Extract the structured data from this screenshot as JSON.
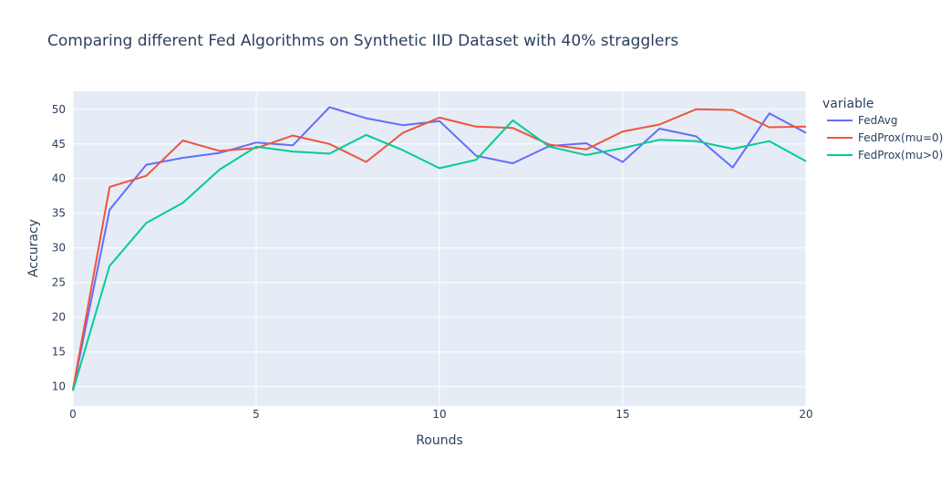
{
  "chart_data": {
    "type": "line",
    "title": "Comparing different Fed Algorithms on Synthetic IID Dataset with 40% stragglers",
    "xlabel": "Rounds",
    "ylabel": "Accuracy",
    "xlim": [
      0,
      20
    ],
    "ylim": [
      7.2,
      52.6
    ],
    "xticks": [
      0,
      5,
      10,
      15,
      20
    ],
    "yticks": [
      10,
      15,
      20,
      25,
      30,
      35,
      40,
      45,
      50
    ],
    "grid": true,
    "legend_title": "variable",
    "legend_position": "right",
    "x": [
      0,
      1,
      2,
      3,
      4,
      5,
      6,
      7,
      8,
      9,
      10,
      11,
      12,
      13,
      14,
      15,
      16,
      17,
      18,
      19,
      20
    ],
    "series": [
      {
        "name": "FedAvg",
        "color": "#636efa",
        "values": [
          9.5,
          35.5,
          42.0,
          43.0,
          43.7,
          45.2,
          44.8,
          50.3,
          48.7,
          47.7,
          48.3,
          43.3,
          42.2,
          44.7,
          45.1,
          42.4,
          47.2,
          46.1,
          41.6,
          49.4,
          46.6
        ]
      },
      {
        "name": "FedProx(mu=0)",
        "color": "#EF553B",
        "values": [
          9.6,
          38.8,
          40.4,
          45.5,
          44.0,
          44.4,
          46.2,
          45.0,
          42.4,
          46.6,
          48.8,
          47.5,
          47.3,
          44.9,
          44.2,
          46.8,
          47.8,
          50.0,
          49.9,
          47.4,
          47.5
        ]
      },
      {
        "name": "FedProx(mu>0)",
        "color": "#00cc96",
        "values": [
          9.4,
          27.4,
          33.6,
          36.5,
          41.3,
          44.6,
          43.9,
          43.6,
          46.3,
          44.1,
          41.5,
          42.7,
          48.4,
          44.6,
          43.4,
          44.4,
          45.6,
          45.4,
          44.3,
          45.4,
          42.5
        ]
      }
    ]
  }
}
